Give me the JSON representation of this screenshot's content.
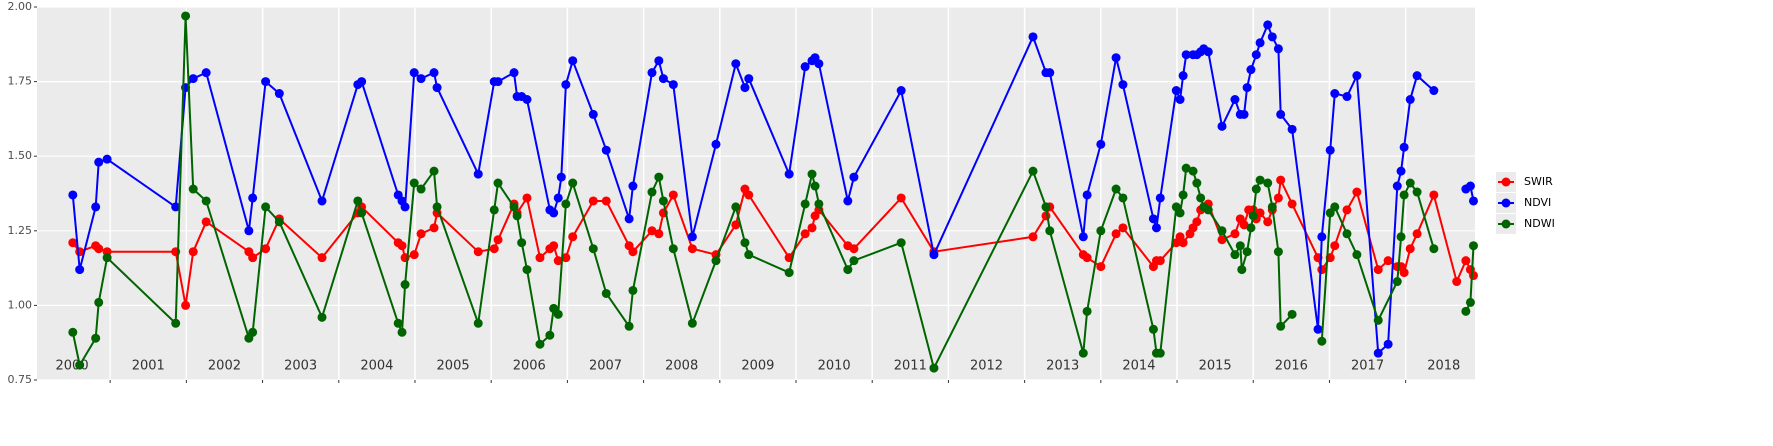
{
  "chart_data": {
    "type": "line",
    "xlim": [
      2000.04,
      2018.91
    ],
    "xticks": [
      {
        "value": 2000.5,
        "label": "2000"
      },
      {
        "value": 2001.5,
        "label": "2001"
      },
      {
        "value": 2002.5,
        "label": "2002"
      },
      {
        "value": 2003.5,
        "label": "2003"
      },
      {
        "value": 2004.5,
        "label": "2004"
      },
      {
        "value": 2005.5,
        "label": "2005"
      },
      {
        "value": 2006.5,
        "label": "2006"
      },
      {
        "value": 2007.5,
        "label": "2007"
      },
      {
        "value": 2008.5,
        "label": "2008"
      },
      {
        "value": 2009.5,
        "label": "2009"
      },
      {
        "value": 2010.5,
        "label": "2010"
      },
      {
        "value": 2011.5,
        "label": "2011"
      },
      {
        "value": 2012.5,
        "label": "2012"
      },
      {
        "value": 2013.5,
        "label": "2013"
      },
      {
        "value": 2014.5,
        "label": "2014"
      },
      {
        "value": 2015.5,
        "label": "2015"
      },
      {
        "value": 2016.5,
        "label": "2016"
      },
      {
        "value": 2017.5,
        "label": "2017"
      },
      {
        "value": 2018.5,
        "label": "2018"
      }
    ],
    "xgrid": [
      2001,
      2002,
      2003,
      2004,
      2005,
      2006,
      2007,
      2008,
      2009,
      2010,
      2011,
      2012,
      2013,
      2014,
      2015,
      2016,
      2017,
      2018
    ],
    "ylim": [
      0.75,
      2
    ],
    "yticks": [
      {
        "value": 0.75,
        "label": "0.75"
      },
      {
        "value": 1,
        "label": "1.00"
      },
      {
        "value": 1.25,
        "label": "1.25"
      },
      {
        "value": 1.5,
        "label": "1.50"
      },
      {
        "value": 1.75,
        "label": "1.75"
      },
      {
        "value": 2,
        "label": "2.00"
      }
    ],
    "grid": true,
    "legend": "right",
    "series": [
      {
        "name": "SWIR",
        "color": "#ff0000",
        "x": [
          2000.51,
          2000.6,
          2000.81,
          2000.85,
          2000.96,
          2001.86,
          2001.99,
          2002.09,
          2002.26,
          2002.82,
          2002.87,
          2003.04,
          2003.22,
          2003.78,
          2004.25,
          2004.3,
          2004.78,
          2004.83,
          2004.87,
          2004.99,
          2005.08,
          2005.25,
          2005.29,
          2005.83,
          2006.04,
          2006.09,
          2006.3,
          2006.34,
          2006.47,
          2006.64,
          2006.77,
          2006.82,
          2006.88,
          2006.98,
          2007.07,
          2007.34,
          2007.51,
          2007.81,
          2007.86,
          2008.11,
          2008.2,
          2008.26,
          2008.39,
          2008.64,
          2008.95,
          2009.21,
          2009.33,
          2009.38,
          2009.91,
          2010.12,
          2010.21,
          2010.25,
          2010.3,
          2010.68,
          2010.76,
          2011.38,
          2011.81,
          2013.11,
          2013.28,
          2013.33,
          2013.77,
          2013.82,
          2014.0,
          2014.2,
          2014.29,
          2014.69,
          2014.73,
          2014.78,
          2014.99,
          2015.04,
          2015.08,
          2015.17,
          2015.21,
          2015.26,
          2015.31,
          2015.41,
          2015.59,
          2015.76,
          2015.83,
          2015.88,
          2015.94,
          2016.0,
          2016.04,
          2016.09,
          2016.19,
          2016.25,
          2016.33,
          2016.36,
          2016.51,
          2016.85,
          2016.9,
          2017.01,
          2017.07,
          2017.23,
          2017.36,
          2017.64,
          2017.77,
          2017.89,
          2017.94,
          2017.98,
          2018.06,
          2018.15,
          2018.37,
          2018.67,
          2018.79,
          2018.85,
          2018.89
        ],
        "values": [
          1.21,
          1.18,
          1.2,
          1.19,
          1.18,
          1.18,
          1.0,
          1.18,
          1.28,
          1.18,
          1.16,
          1.19,
          1.29,
          1.16,
          1.31,
          1.33,
          1.21,
          1.2,
          1.16,
          1.17,
          1.24,
          1.26,
          1.31,
          1.18,
          1.19,
          1.22,
          1.34,
          1.31,
          1.36,
          1.16,
          1.19,
          1.2,
          1.15,
          1.16,
          1.23,
          1.35,
          1.35,
          1.2,
          1.18,
          1.25,
          1.24,
          1.31,
          1.37,
          1.19,
          1.17,
          1.27,
          1.39,
          1.37,
          1.16,
          1.24,
          1.26,
          1.3,
          1.32,
          1.2,
          1.19,
          1.36,
          1.18,
          1.23,
          1.3,
          1.33,
          1.17,
          1.16,
          1.13,
          1.24,
          1.26,
          1.13,
          1.15,
          1.15,
          1.21,
          1.23,
          1.21,
          1.24,
          1.26,
          1.28,
          1.32,
          1.34,
          1.22,
          1.24,
          1.29,
          1.27,
          1.32,
          1.32,
          1.29,
          1.31,
          1.28,
          1.32,
          1.36,
          1.42,
          1.34,
          1.16,
          1.12,
          1.16,
          1.2,
          1.32,
          1.38,
          1.12,
          1.15,
          1.13,
          1.13,
          1.11,
          1.19,
          1.24,
          1.37,
          1.08,
          1.15,
          1.12,
          1.1
        ]
      },
      {
        "name": "NDVI",
        "color": "#0000ff",
        "x": [
          2000.51,
          2000.6,
          2000.81,
          2000.85,
          2000.96,
          2001.86,
          2001.99,
          2002.09,
          2002.26,
          2002.82,
          2002.87,
          2003.04,
          2003.22,
          2003.78,
          2004.25,
          2004.3,
          2004.78,
          2004.83,
          2004.87,
          2004.99,
          2005.08,
          2005.25,
          2005.29,
          2005.83,
          2006.04,
          2006.09,
          2006.3,
          2006.34,
          2006.4,
          2006.47,
          2006.77,
          2006.82,
          2006.88,
          2006.92,
          2006.98,
          2007.07,
          2007.34,
          2007.51,
          2007.81,
          2007.86,
          2008.11,
          2008.2,
          2008.26,
          2008.39,
          2008.64,
          2008.95,
          2009.21,
          2009.33,
          2009.38,
          2009.91,
          2010.12,
          2010.21,
          2010.25,
          2010.3,
          2010.68,
          2010.76,
          2011.38,
          2011.81,
          2013.11,
          2013.28,
          2013.33,
          2013.77,
          2013.82,
          2014.0,
          2014.2,
          2014.29,
          2014.69,
          2014.73,
          2014.78,
          2014.99,
          2015.04,
          2015.08,
          2015.12,
          2015.21,
          2015.26,
          2015.31,
          2015.35,
          2015.41,
          2015.59,
          2015.76,
          2015.83,
          2015.88,
          2015.92,
          2015.97,
          2016.04,
          2016.09,
          2016.19,
          2016.25,
          2016.33,
          2016.36,
          2016.51,
          2016.85,
          2016.9,
          2017.01,
          2017.07,
          2017.23,
          2017.36,
          2017.64,
          2017.77,
          2017.89,
          2017.94,
          2017.98,
          2018.06,
          2018.15,
          2018.37,
          null,
          2018.79,
          2018.85,
          2018.89
        ],
        "values": [
          1.37,
          1.12,
          1.33,
          1.48,
          1.49,
          1.33,
          1.73,
          1.76,
          1.78,
          1.25,
          1.36,
          1.75,
          1.71,
          1.35,
          1.74,
          1.75,
          1.37,
          1.35,
          1.33,
          1.78,
          1.76,
          1.78,
          1.73,
          1.44,
          1.75,
          1.75,
          1.78,
          1.7,
          1.7,
          1.69,
          1.32,
          1.31,
          1.36,
          1.43,
          1.74,
          1.82,
          1.64,
          1.52,
          1.29,
          1.4,
          1.78,
          1.82,
          1.76,
          1.74,
          1.23,
          1.54,
          1.81,
          1.73,
          1.76,
          1.44,
          1.8,
          1.82,
          1.83,
          1.81,
          1.35,
          1.43,
          1.72,
          1.17,
          1.9,
          1.78,
          1.78,
          1.23,
          1.37,
          1.54,
          1.83,
          1.74,
          1.29,
          1.26,
          1.36,
          1.72,
          1.69,
          1.77,
          1.84,
          1.84,
          1.84,
          1.85,
          1.86,
          1.85,
          1.6,
          1.69,
          1.64,
          1.64,
          1.73,
          1.79,
          1.84,
          1.88,
          1.94,
          1.9,
          1.86,
          1.64,
          1.59,
          0.92,
          1.23,
          1.52,
          1.71,
          1.7,
          1.77,
          0.84,
          0.87,
          1.4,
          1.45,
          1.53,
          1.69,
          1.77,
          1.72,
          null,
          1.39,
          1.4,
          1.35
        ]
      },
      {
        "name": "NDWI",
        "color": "#006400",
        "x": [
          2000.51,
          2000.6,
          2000.81,
          2000.85,
          2000.96,
          2001.86,
          2001.99,
          2002.09,
          2002.26,
          2002.82,
          2002.87,
          2003.04,
          2003.22,
          2003.78,
          2004.25,
          2004.3,
          2004.78,
          2004.83,
          2004.87,
          2004.99,
          2005.08,
          2005.25,
          2005.29,
          2005.83,
          2006.04,
          2006.09,
          2006.3,
          2006.34,
          2006.4,
          2006.47,
          2006.64,
          2006.77,
          2006.82,
          2006.88,
          2006.98,
          2007.07,
          2007.34,
          2007.51,
          2007.81,
          2007.86,
          2008.11,
          2008.2,
          2008.26,
          2008.39,
          2008.64,
          2008.95,
          2009.21,
          2009.33,
          2009.38,
          2009.91,
          2010.12,
          2010.21,
          2010.25,
          2010.3,
          2010.68,
          2010.76,
          2011.38,
          2011.81,
          2013.11,
          2013.28,
          2013.33,
          2013.77,
          2013.82,
          2014.0,
          2014.2,
          2014.29,
          2014.69,
          2014.73,
          2014.78,
          2014.99,
          2015.04,
          2015.08,
          2015.12,
          2015.21,
          2015.26,
          2015.31,
          2015.35,
          2015.41,
          2015.59,
          2015.76,
          2015.83,
          2015.85,
          2015.92,
          2015.97,
          2016.0,
          2016.04,
          2016.09,
          2016.19,
          2016.25,
          2016.33,
          2016.36,
          2016.51,
          null,
          2016.9,
          2017.01,
          2017.07,
          2017.23,
          2017.36,
          2017.64,
          2017.89,
          2017.94,
          2017.98,
          2018.06,
          2018.15,
          2018.37,
          null,
          2018.79,
          2018.85,
          2018.89
        ],
        "values": [
          0.91,
          0.8,
          0.89,
          1.01,
          1.16,
          0.94,
          1.97,
          1.39,
          1.35,
          0.89,
          0.91,
          1.33,
          1.28,
          0.96,
          1.35,
          1.31,
          0.94,
          0.91,
          1.07,
          1.41,
          1.39,
          1.45,
          1.33,
          0.94,
          1.32,
          1.41,
          1.33,
          1.3,
          1.21,
          1.12,
          0.87,
          0.9,
          0.99,
          0.97,
          1.34,
          1.41,
          1.19,
          1.04,
          0.93,
          1.05,
          1.38,
          1.43,
          1.35,
          1.19,
          0.94,
          1.15,
          1.33,
          1.21,
          1.17,
          1.11,
          1.34,
          1.44,
          1.4,
          1.34,
          1.12,
          1.15,
          1.21,
          0.79,
          1.45,
          1.33,
          1.25,
          0.84,
          0.98,
          1.25,
          1.39,
          1.36,
          0.92,
          0.84,
          0.84,
          1.33,
          1.31,
          1.37,
          1.46,
          1.45,
          1.41,
          1.36,
          1.33,
          1.32,
          1.25,
          1.17,
          1.2,
          1.12,
          1.18,
          1.26,
          1.3,
          1.39,
          1.42,
          1.41,
          1.33,
          1.18,
          0.93,
          0.97,
          null,
          0.88,
          1.31,
          1.33,
          1.24,
          1.17,
          0.95,
          1.08,
          1.23,
          1.37,
          1.41,
          1.38,
          1.19,
          null,
          0.98,
          1.01,
          1.2
        ]
      }
    ]
  }
}
